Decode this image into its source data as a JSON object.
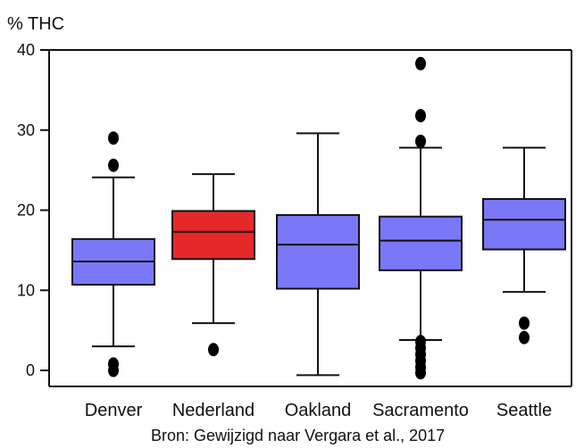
{
  "chart_data": {
    "type": "boxplot",
    "ylabel": "% THC",
    "ylim": [
      -2,
      40
    ],
    "yticks": [
      0,
      10,
      20,
      30,
      40
    ],
    "grid": false,
    "categories": [
      "Denver",
      "Nederland",
      "Oakland",
      "Sacramento",
      "Seattle"
    ],
    "boxes": [
      {
        "category": "Denver",
        "whisker_low": 3.0,
        "q1": 10.7,
        "median": 13.6,
        "q3": 16.4,
        "whisker_high": 24.1,
        "outliers": [
          29.0,
          25.6,
          0.8,
          0.0
        ],
        "color": "#7a78f6"
      },
      {
        "category": "Nederland",
        "whisker_low": 5.9,
        "q1": 13.9,
        "median": 17.3,
        "q3": 19.9,
        "whisker_high": 24.5,
        "outliers": [
          2.6
        ],
        "color": "#e5282a"
      },
      {
        "category": "Oakland",
        "whisker_low": -0.6,
        "q1": 10.2,
        "median": 15.7,
        "q3": 19.4,
        "whisker_high": 29.6,
        "outliers": [],
        "color": "#7a78f6"
      },
      {
        "category": "Sacramento",
        "whisker_low": 3.8,
        "q1": 12.5,
        "median": 16.2,
        "q3": 19.2,
        "whisker_high": 27.8,
        "outliers": [
          38.3,
          31.8,
          28.6,
          3.6,
          2.8,
          2.0,
          1.2,
          0.4,
          -0.3
        ],
        "color": "#7a78f6"
      },
      {
        "category": "Seattle",
        "whisker_low": 9.8,
        "q1": 15.1,
        "median": 18.8,
        "q3": 21.4,
        "whisker_high": 27.8,
        "outliers": [
          5.9,
          4.1
        ],
        "color": "#7a78f6"
      }
    ],
    "source": "Bron: Gewijzigd naar Vergara et al., 2017"
  }
}
